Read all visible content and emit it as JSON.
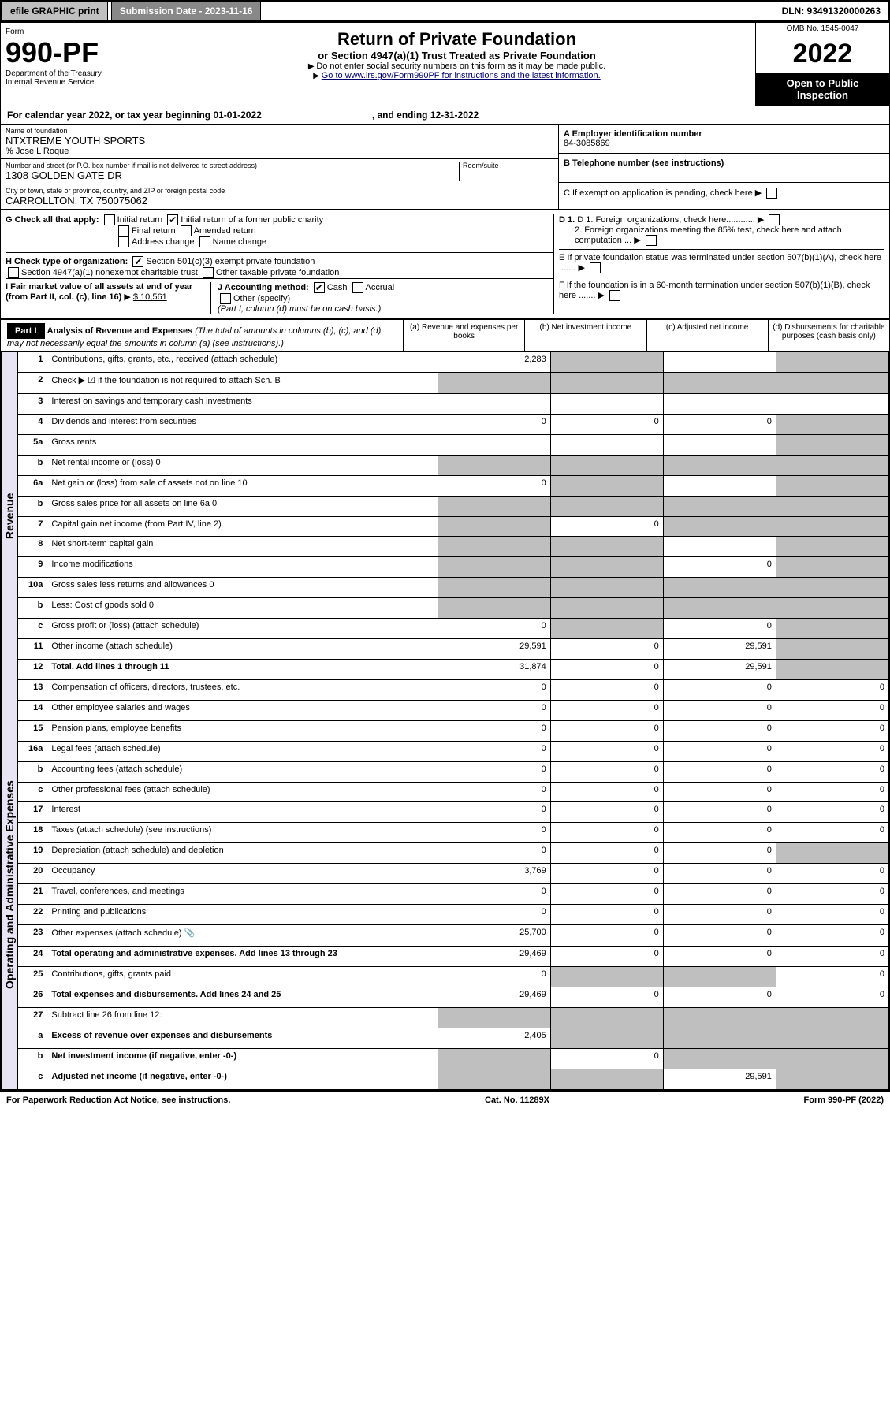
{
  "topbar": {
    "efile": "efile GRAPHIC print",
    "subdate": "Submission Date - 2023-11-16",
    "dln": "DLN: 93491320000263"
  },
  "formhdr": {
    "form": "Form",
    "num": "990-PF",
    "dept": "Department of the Treasury",
    "irs": "Internal Revenue Service",
    "title": "Return of Private Foundation",
    "sub1": "or Section 4947(a)(1) Trust Treated as Private Foundation",
    "sub2": "Do not enter social security numbers on this form as it may be made public.",
    "sub3": "Go to www.irs.gov/Form990PF for instructions and the latest information.",
    "omb": "OMB No. 1545-0047",
    "year": "2022",
    "open": "Open to Public Inspection"
  },
  "cal": {
    "line": "For calendar year 2022, or tax year beginning 01-01-2022",
    "end": ", and ending 12-31-2022"
  },
  "info": {
    "name_lbl": "Name of foundation",
    "name": "NTXTREME YOUTH SPORTS",
    "careof": "% Jose L Roque",
    "addr_lbl": "Number and street (or P.O. box number if mail is not delivered to street address)",
    "addr": "1308 GOLDEN GATE DR",
    "room_lbl": "Room/suite",
    "city_lbl": "City or town, state or province, country, and ZIP or foreign postal code",
    "city": "CARROLLTON, TX  750075062",
    "a_lbl": "A Employer identification number",
    "a_val": "84-3085869",
    "b_lbl": "B Telephone number (see instructions)",
    "c_lbl": "C If exemption application is pending, check here",
    "d1": "D 1. Foreign organizations, check here............",
    "d2": "2. Foreign organizations meeting the 85% test, check here and attach computation ...",
    "e_lbl": "E  If private foundation status was terminated under section 507(b)(1)(A), check here .......",
    "f_lbl": "F  If the foundation is in a 60-month termination under section 507(b)(1)(B), check here ......."
  },
  "checks": {
    "g": "G Check all that apply:",
    "g1": "Initial return",
    "g2": "Initial return of a former public charity",
    "g3": "Final return",
    "g4": "Amended return",
    "g5": "Address change",
    "g6": "Name change",
    "h": "H Check type of organization:",
    "h1": "Section 501(c)(3) exempt private foundation",
    "h2": "Section 4947(a)(1) nonexempt charitable trust",
    "h3": "Other taxable private foundation",
    "i": "I Fair market value of all assets at end of year (from Part II, col. (c), line 16)",
    "i_val": "$  10,561",
    "j": "J Accounting method:",
    "j1": "Cash",
    "j2": "Accrual",
    "j3": "Other (specify)",
    "j_note": "(Part I, column (d) must be on cash basis.)"
  },
  "part1": {
    "hdr": "Part I",
    "title": "Analysis of Revenue and Expenses",
    "title_note": "(The total of amounts in columns (b), (c), and (d) may not necessarily equal the amounts in column (a) (see instructions).)",
    "cols": {
      "a": "(a) Revenue and expenses per books",
      "b": "(b) Net investment income",
      "c": "(c) Adjusted net income",
      "d": "(d) Disbursements for charitable purposes (cash basis only)"
    }
  },
  "sections": {
    "rev": "Revenue",
    "exp": "Operating and Administrative Expenses"
  },
  "rows": [
    {
      "n": "1",
      "d": "Contributions, gifts, grants, etc., received (attach schedule)",
      "a": "2,283",
      "bs": true,
      "dsh": true
    },
    {
      "n": "2",
      "d": "Check ▶ ☑ if the foundation is not required to attach Sch. B",
      "allsh": true
    },
    {
      "n": "3",
      "d": "Interest on savings and temporary cash investments"
    },
    {
      "n": "4",
      "d": "Dividends and interest from securities",
      "a": "0",
      "b": "0",
      "c": "0",
      "dsh": true
    },
    {
      "n": "5a",
      "d": "Gross rents",
      "dsh": true
    },
    {
      "n": "b",
      "d": "Net rental income or (loss)                                0",
      "allsh": true
    },
    {
      "n": "6a",
      "d": "Net gain or (loss) from sale of assets not on line 10",
      "a": "0",
      "bs": true,
      "dsh": true
    },
    {
      "n": "b",
      "d": "Gross sales price for all assets on line 6a                0",
      "allsh": true
    },
    {
      "n": "7",
      "d": "Capital gain net income (from Part IV, line 2)",
      "ash": true,
      "b": "0",
      "csh": true,
      "dsh": true
    },
    {
      "n": "8",
      "d": "Net short-term capital gain",
      "ash": true,
      "bs": true,
      "dsh": true
    },
    {
      "n": "9",
      "d": "Income modifications",
      "ash": true,
      "bs": true,
      "c": "0",
      "dsh": true
    },
    {
      "n": "10a",
      "d": "Gross sales less returns and allowances             0",
      "allsh": true
    },
    {
      "n": "b",
      "d": "Less: Cost of goods sold                                       0",
      "allsh": true
    },
    {
      "n": "c",
      "d": "Gross profit or (loss) (attach schedule)",
      "a": "0",
      "bs": true,
      "c": "0",
      "dsh": true
    },
    {
      "n": "11",
      "d": "Other income (attach schedule)",
      "a": "29,591",
      "b": "0",
      "c": "29,591",
      "dsh": true
    },
    {
      "n": "12",
      "d": "Total. Add lines 1 through 11",
      "bold": true,
      "a": "31,874",
      "b": "0",
      "c": "29,591",
      "dsh": true
    },
    {
      "sec": "exp"
    },
    {
      "n": "13",
      "d": "Compensation of officers, directors, trustees, etc.",
      "a": "0",
      "b": "0",
      "c": "0",
      "dd": "0"
    },
    {
      "n": "14",
      "d": "Other employee salaries and wages",
      "a": "0",
      "b": "0",
      "c": "0",
      "dd": "0"
    },
    {
      "n": "15",
      "d": "Pension plans, employee benefits",
      "a": "0",
      "b": "0",
      "c": "0",
      "dd": "0"
    },
    {
      "n": "16a",
      "d": "Legal fees (attach schedule)",
      "a": "0",
      "b": "0",
      "c": "0",
      "dd": "0"
    },
    {
      "n": "b",
      "d": "Accounting fees (attach schedule)",
      "a": "0",
      "b": "0",
      "c": "0",
      "dd": "0"
    },
    {
      "n": "c",
      "d": "Other professional fees (attach schedule)",
      "a": "0",
      "b": "0",
      "c": "0",
      "dd": "0"
    },
    {
      "n": "17",
      "d": "Interest",
      "a": "0",
      "b": "0",
      "c": "0",
      "dd": "0"
    },
    {
      "n": "18",
      "d": "Taxes (attach schedule) (see instructions)",
      "a": "0",
      "b": "0",
      "c": "0",
      "dd": "0"
    },
    {
      "n": "19",
      "d": "Depreciation (attach schedule) and depletion",
      "a": "0",
      "b": "0",
      "c": "0",
      "dsh": true
    },
    {
      "n": "20",
      "d": "Occupancy",
      "a": "3,769",
      "b": "0",
      "c": "0",
      "dd": "0"
    },
    {
      "n": "21",
      "d": "Travel, conferences, and meetings",
      "a": "0",
      "b": "0",
      "c": "0",
      "dd": "0"
    },
    {
      "n": "22",
      "d": "Printing and publications",
      "a": "0",
      "b": "0",
      "c": "0",
      "dd": "0"
    },
    {
      "n": "23",
      "d": "Other expenses (attach schedule)       📎",
      "a": "25,700",
      "b": "0",
      "c": "0",
      "dd": "0"
    },
    {
      "n": "24",
      "d": "Total operating and administrative expenses. Add lines 13 through 23",
      "bold": true,
      "a": "29,469",
      "b": "0",
      "c": "0",
      "dd": "0"
    },
    {
      "n": "25",
      "d": "Contributions, gifts, grants paid",
      "a": "0",
      "bs": true,
      "csh": true,
      "dd": "0"
    },
    {
      "n": "26",
      "d": "Total expenses and disbursements. Add lines 24 and 25",
      "bold": true,
      "a": "29,469",
      "b": "0",
      "c": "0",
      "dd": "0"
    },
    {
      "n": "27",
      "d": "Subtract line 26 from line 12:",
      "allsh2": true
    },
    {
      "n": "a",
      "d": "Excess of revenue over expenses and disbursements",
      "bold": true,
      "a": "2,405",
      "bs": true,
      "csh": true,
      "dsh": true
    },
    {
      "n": "b",
      "d": "Net investment income (if negative, enter -0-)",
      "bold": true,
      "ash": true,
      "b": "0",
      "csh": true,
      "dsh": true
    },
    {
      "n": "c",
      "d": "Adjusted net income (if negative, enter -0-)",
      "bold": true,
      "ash": true,
      "bs": true,
      "c": "29,591",
      "dsh": true
    }
  ],
  "footer": {
    "l": "For Paperwork Reduction Act Notice, see instructions.",
    "m": "Cat. No. 11289X",
    "r": "Form 990-PF (2022)"
  }
}
